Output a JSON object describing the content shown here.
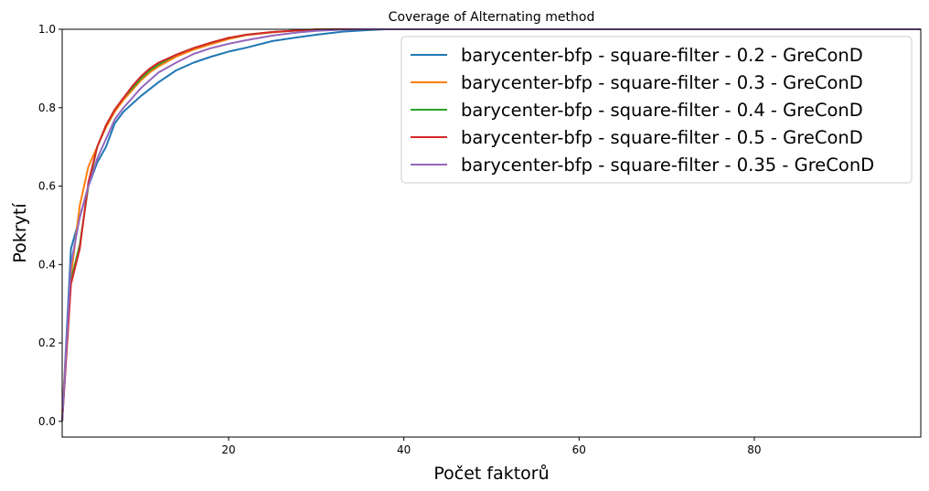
{
  "chart_data": {
    "type": "line",
    "title": "Coverage of Alternating method",
    "xlabel": "Počet faktorů",
    "ylabel": "Pokrytí",
    "xlim": [
      1,
      99
    ],
    "ylim": [
      -0.04,
      1.0
    ],
    "xticks": [
      20,
      40,
      60,
      80
    ],
    "yticks": [
      0.0,
      0.2,
      0.4,
      0.6,
      0.8,
      1.0
    ],
    "xtick_labels": [
      "20",
      "40",
      "60",
      "80"
    ],
    "ytick_labels": [
      "0.0",
      "0.2",
      "0.4",
      "0.6",
      "0.8",
      "1.0"
    ],
    "grid": false,
    "legend_position": "top-right",
    "series": [
      {
        "name": "barycenter-bfp - square-filter - 0.2 - GreConD",
        "color": "#1f77b4",
        "x": [
          1,
          2,
          3,
          4,
          5,
          6,
          7,
          8,
          9,
          10,
          12,
          14,
          16,
          18,
          20,
          22,
          25,
          28,
          30,
          33,
          36,
          38,
          40,
          45,
          50,
          60,
          70,
          80,
          99
        ],
        "y": [
          0.0,
          0.44,
          0.52,
          0.6,
          0.66,
          0.7,
          0.76,
          0.79,
          0.81,
          0.83,
          0.865,
          0.895,
          0.915,
          0.93,
          0.943,
          0.953,
          0.97,
          0.98,
          0.986,
          0.994,
          0.998,
          1.0,
          1.0,
          1.0,
          1.0,
          1.0,
          1.0,
          1.0,
          1.0
        ]
      },
      {
        "name": "barycenter-bfp - square-filter - 0.3 - GreConD",
        "color": "#ff7f0e",
        "x": [
          1,
          2,
          3,
          4,
          5,
          6,
          7,
          8,
          9,
          10,
          11,
          12,
          14,
          16,
          18,
          20,
          22,
          25,
          28,
          30,
          32,
          35,
          40,
          99
        ],
        "y": [
          0.02,
          0.37,
          0.55,
          0.65,
          0.7,
          0.75,
          0.79,
          0.82,
          0.845,
          0.87,
          0.89,
          0.905,
          0.93,
          0.948,
          0.962,
          0.975,
          0.985,
          0.992,
          0.997,
          1.0,
          1.0,
          1.0,
          1.0,
          1.0
        ]
      },
      {
        "name": "barycenter-bfp - square-filter - 0.4 - GreConD",
        "color": "#2ca02c",
        "x": [
          1,
          2,
          3,
          4,
          5,
          6,
          7,
          8,
          9,
          10,
          11,
          12,
          14,
          16,
          18,
          20,
          22,
          25,
          28,
          30,
          33,
          36,
          40,
          99
        ],
        "y": [
          0.0,
          0.36,
          0.45,
          0.6,
          0.7,
          0.755,
          0.795,
          0.825,
          0.85,
          0.875,
          0.895,
          0.91,
          0.935,
          0.952,
          0.966,
          0.978,
          0.986,
          0.993,
          0.997,
          0.999,
          1.0,
          1.0,
          1.0,
          1.0
        ]
      },
      {
        "name": "barycenter-bfp - square-filter - 0.5 - GreConD",
        "color": "#d62728",
        "x": [
          1,
          2,
          3,
          4,
          5,
          6,
          7,
          8,
          9,
          10,
          11,
          12,
          14,
          16,
          18,
          20,
          22,
          25,
          28,
          30,
          33,
          36,
          40,
          99
        ],
        "y": [
          0.0,
          0.35,
          0.44,
          0.61,
          0.7,
          0.755,
          0.795,
          0.825,
          0.855,
          0.88,
          0.9,
          0.915,
          0.935,
          0.952,
          0.966,
          0.978,
          0.986,
          0.993,
          0.997,
          0.999,
          1.0,
          1.0,
          1.0,
          1.0
        ]
      },
      {
        "name": "barycenter-bfp - square-filter - 0.35 - GreConD",
        "color": "#9467bd",
        "x": [
          1,
          2,
          3,
          4,
          5,
          6,
          7,
          8,
          9,
          10,
          11,
          12,
          14,
          16,
          18,
          20,
          22,
          25,
          28,
          30,
          33,
          36,
          40,
          99
        ],
        "y": [
          0.0,
          0.4,
          0.52,
          0.6,
          0.67,
          0.72,
          0.77,
          0.8,
          0.825,
          0.85,
          0.87,
          0.89,
          0.915,
          0.937,
          0.952,
          0.963,
          0.972,
          0.984,
          0.992,
          0.996,
          0.999,
          1.0,
          1.0,
          1.0
        ]
      }
    ]
  }
}
